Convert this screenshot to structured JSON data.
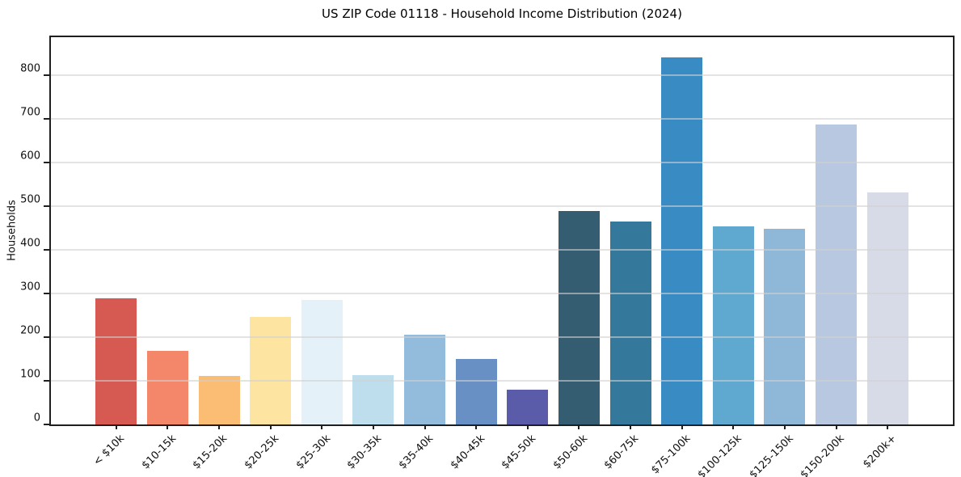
{
  "chart_data": {
    "type": "bar",
    "title": "US ZIP Code 01118 - Household Income Distribution (2024)",
    "xlabel": "",
    "ylabel": "Households",
    "categories": [
      "< $10k",
      "$10-15k",
      "$15-20k",
      "$20-25k",
      "$25-30k",
      "$30-35k",
      "$35-40k",
      "$40-45k",
      "$45-50k",
      "$50-60k",
      "$60-75k",
      "$75-100k",
      "$100-125k",
      "$125-150k",
      "$150-200k",
      "$200k+"
    ],
    "values": [
      288,
      168,
      111,
      246,
      284,
      113,
      205,
      149,
      80,
      488,
      464,
      840,
      453,
      448,
      686,
      531
    ],
    "bar_colors": [
      "#d65a52",
      "#f4876a",
      "#fbbc74",
      "#fde4a0",
      "#e4f1f8",
      "#bedeed",
      "#93bcdc",
      "#6890c4",
      "#5a5caa",
      "#355d72",
      "#34789c",
      "#388cc3",
      "#5fa8cf",
      "#8fb7d8",
      "#b7c8e0",
      "#d7dbe8"
    ],
    "yticks": [
      0,
      100,
      200,
      300,
      400,
      500,
      600,
      700,
      800
    ],
    "ylim": [
      0,
      886
    ],
    "grid": "y",
    "legend": "none",
    "background_color": "#ffffff",
    "axis_color": "#1f1f1f"
  }
}
